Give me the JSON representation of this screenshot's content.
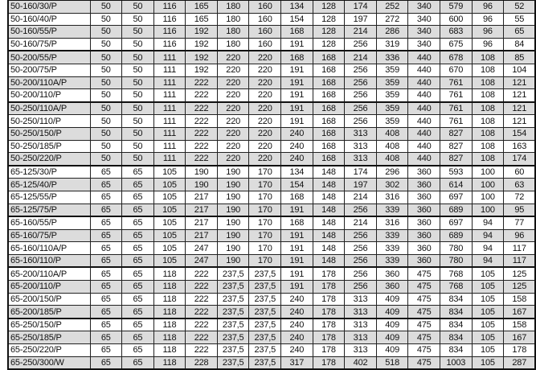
{
  "table": {
    "rows": [
      [
        "50-160/30/P",
        "50",
        "50",
        "116",
        "165",
        "180",
        "160",
        "134",
        "128",
        "174",
        "252",
        "340",
        "579",
        "96",
        "52"
      ],
      [
        "50-160/40/P",
        "50",
        "50",
        "116",
        "165",
        "180",
        "160",
        "154",
        "128",
        "197",
        "272",
        "340",
        "600",
        "96",
        "55"
      ],
      [
        "50-160/55/P",
        "50",
        "50",
        "116",
        "192",
        "180",
        "160",
        "168",
        "128",
        "214",
        "286",
        "340",
        "683",
        "96",
        "65"
      ],
      [
        "50-160/75/P",
        "50",
        "50",
        "116",
        "192",
        "180",
        "160",
        "191",
        "128",
        "256",
        "319",
        "340",
        "675",
        "96",
        "84"
      ],
      [
        "50-200/55/P",
        "50",
        "50",
        "111",
        "192",
        "220",
        "220",
        "168",
        "168",
        "214",
        "336",
        "440",
        "678",
        "108",
        "85"
      ],
      [
        "50-200/75/P",
        "50",
        "50",
        "111",
        "192",
        "220",
        "220",
        "191",
        "168",
        "256",
        "359",
        "440",
        "670",
        "108",
        "104"
      ],
      [
        "50-200/110A/P",
        "50",
        "50",
        "111",
        "222",
        "220",
        "220",
        "191",
        "168",
        "256",
        "359",
        "440",
        "761",
        "108",
        "121"
      ],
      [
        "50-200/110/P",
        "50",
        "50",
        "111",
        "222",
        "220",
        "220",
        "191",
        "168",
        "256",
        "359",
        "440",
        "761",
        "108",
        "121"
      ],
      [
        "50-250/110A/P",
        "50",
        "50",
        "111",
        "222",
        "220",
        "220",
        "191",
        "168",
        "256",
        "359",
        "440",
        "761",
        "108",
        "121"
      ],
      [
        "50-250/110/P",
        "50",
        "50",
        "111",
        "222",
        "220",
        "220",
        "191",
        "168",
        "256",
        "359",
        "440",
        "761",
        "108",
        "121"
      ],
      [
        "50-250/150/P",
        "50",
        "50",
        "111",
        "222",
        "220",
        "220",
        "240",
        "168",
        "313",
        "408",
        "440",
        "827",
        "108",
        "154"
      ],
      [
        "50-250/185/P",
        "50",
        "50",
        "111",
        "222",
        "220",
        "220",
        "240",
        "168",
        "313",
        "408",
        "440",
        "827",
        "108",
        "163"
      ],
      [
        "50-250/220/P",
        "50",
        "50",
        "111",
        "222",
        "220",
        "220",
        "240",
        "168",
        "313",
        "408",
        "440",
        "827",
        "108",
        "174"
      ],
      [
        "65-125/30/P",
        "65",
        "65",
        "105",
        "190",
        "190",
        "170",
        "134",
        "148",
        "174",
        "296",
        "360",
        "593",
        "100",
        "60"
      ],
      [
        "65-125/40/P",
        "65",
        "65",
        "105",
        "190",
        "190",
        "170",
        "154",
        "148",
        "197",
        "302",
        "360",
        "614",
        "100",
        "63"
      ],
      [
        "65-125/55/P",
        "65",
        "65",
        "105",
        "217",
        "190",
        "170",
        "168",
        "148",
        "214",
        "316",
        "360",
        "697",
        "100",
        "72"
      ],
      [
        "65-125/75/P",
        "65",
        "65",
        "105",
        "217",
        "190",
        "170",
        "191",
        "148",
        "256",
        "339",
        "360",
        "689",
        "100",
        "95"
      ],
      [
        "65-160/55/P",
        "65",
        "65",
        "105",
        "217",
        "190",
        "170",
        "168",
        "148",
        "214",
        "316",
        "360",
        "697",
        "94",
        "77"
      ],
      [
        "65-160/75/P",
        "65",
        "65",
        "105",
        "217",
        "190",
        "170",
        "191",
        "148",
        "256",
        "339",
        "360",
        "689",
        "94",
        "96"
      ],
      [
        "65-160/110A/P",
        "65",
        "65",
        "105",
        "247",
        "190",
        "170",
        "191",
        "148",
        "256",
        "339",
        "360",
        "780",
        "94",
        "117"
      ],
      [
        "65-160/110/P",
        "65",
        "65",
        "105",
        "247",
        "190",
        "170",
        "191",
        "148",
        "256",
        "339",
        "360",
        "780",
        "94",
        "117"
      ],
      [
        "65-200/110A/P",
        "65",
        "65",
        "118",
        "222",
        "237,5",
        "237,5",
        "191",
        "178",
        "256",
        "360",
        "475",
        "768",
        "105",
        "125"
      ],
      [
        "65-200/110/P",
        "65",
        "65",
        "118",
        "222",
        "237,5",
        "237,5",
        "191",
        "178",
        "256",
        "360",
        "475",
        "768",
        "105",
        "125"
      ],
      [
        "65-200/150/P",
        "65",
        "65",
        "118",
        "222",
        "237,5",
        "237,5",
        "240",
        "178",
        "313",
        "409",
        "475",
        "834",
        "105",
        "158"
      ],
      [
        "65-200/185/P",
        "65",
        "65",
        "118",
        "222",
        "237,5",
        "237,5",
        "240",
        "178",
        "313",
        "409",
        "475",
        "834",
        "105",
        "167"
      ],
      [
        "65-250/150/P",
        "65",
        "65",
        "118",
        "222",
        "237,5",
        "237,5",
        "240",
        "178",
        "313",
        "409",
        "475",
        "834",
        "105",
        "158"
      ],
      [
        "65-250/185/P",
        "65",
        "65",
        "118",
        "222",
        "237,5",
        "237,5",
        "240",
        "178",
        "313",
        "409",
        "475",
        "834",
        "105",
        "167"
      ],
      [
        "65-250/220/P",
        "65",
        "65",
        "118",
        "222",
        "237,5",
        "237,5",
        "240",
        "178",
        "313",
        "409",
        "475",
        "834",
        "105",
        "178"
      ],
      [
        "65-250/300/W",
        "65",
        "65",
        "118",
        "228",
        "237,5",
        "237,5",
        "317",
        "178",
        "402",
        "518",
        "475",
        "1003",
        "105",
        "287"
      ]
    ],
    "row_fill_colors": {
      "shaded": "#dcdcdc",
      "plain": "#ffffff"
    }
  }
}
